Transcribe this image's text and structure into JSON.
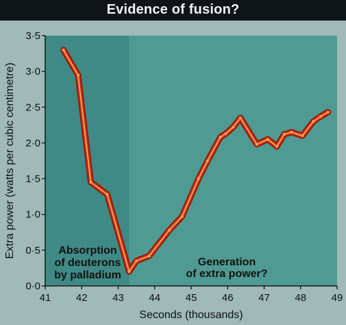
{
  "header": {
    "title": "Evidence of fusion?"
  },
  "chart_data": {
    "type": "line",
    "title": "Evidence of fusion?",
    "xlabel": "Seconds (thousands)",
    "ylabel": "Extra power (watts per cubic centimetre)",
    "xlim": [
      41,
      49
    ],
    "ylim": [
      0,
      3.5
    ],
    "xticks": [
      41,
      42,
      43,
      44,
      45,
      46,
      47,
      48,
      49
    ],
    "xtick_labels": [
      "41",
      "42",
      "43",
      "44",
      "45",
      "46",
      "47",
      "48",
      "49"
    ],
    "yticks": [
      0,
      0.5,
      1,
      1.5,
      2,
      2.5,
      3,
      3.5
    ],
    "ytick_labels": [
      "0·0",
      "0·5",
      "1·0",
      "1·5",
      "2·0",
      "2·5",
      "3·0",
      "3·5"
    ],
    "grid": false,
    "series": [
      {
        "x": [
          41.5,
          41.9,
          42.25,
          42.7,
          43.3,
          43.5,
          43.85,
          44.4,
          44.75,
          45.2,
          45.45,
          45.8,
          45.95,
          46.15,
          46.35,
          46.8,
          47.1,
          47.35,
          47.55,
          47.75,
          48.05,
          48.35,
          48.55,
          48.75
        ],
        "values": [
          3.3,
          2.95,
          1.45,
          1.28,
          0.2,
          0.35,
          0.42,
          0.78,
          0.97,
          1.5,
          1.75,
          2.08,
          2.13,
          2.22,
          2.35,
          1.98,
          2.05,
          1.95,
          2.12,
          2.15,
          2.1,
          2.3,
          2.37,
          2.43
        ]
      }
    ],
    "annotations": [
      {
        "lines": [
          "Absorption",
          "of deuterons",
          "by palladium"
        ]
      },
      {
        "lines": [
          "Generation",
          "of extra power?"
        ]
      }
    ],
    "shaded_regions": [
      {
        "x_range": [
          41,
          43.3
        ],
        "color": "#3f8a86"
      },
      {
        "x_range": [
          43.3,
          49
        ],
        "color": "#4f9a93"
      }
    ],
    "colors": {
      "line": "#c62b12",
      "line_highlight": "#f3a35b"
    }
  }
}
